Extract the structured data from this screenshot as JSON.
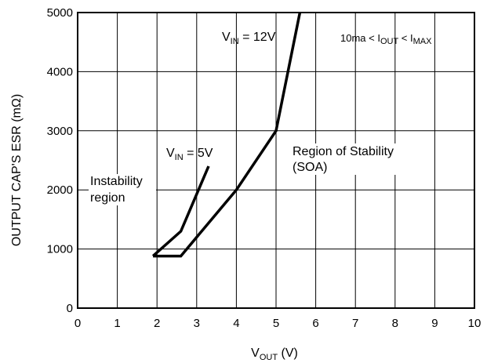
{
  "chart_data": {
    "type": "line",
    "xlabel": {
      "main": "V",
      "sub": "OUT",
      "unit": " (V)"
    },
    "ylabel": "OUTPUT CAP'S ESR (mΩ)",
    "xlim": [
      0,
      10
    ],
    "ylim": [
      0,
      5000
    ],
    "x_ticks": [
      "0",
      "1",
      "2",
      "3",
      "4",
      "5",
      "6",
      "7",
      "8",
      "9",
      "10"
    ],
    "y_ticks": [
      "0",
      "1000",
      "2000",
      "3000",
      "4000",
      "5000"
    ],
    "grid": true,
    "series": [
      {
        "label": {
          "main": "V",
          "sub": "IN",
          "rest": " = 12V"
        },
        "x": [
          1.9,
          2.6,
          4.0,
          5.0,
          5.6
        ],
        "y": [
          880,
          880,
          2000,
          3000,
          5000
        ]
      },
      {
        "label": {
          "main": "V",
          "sub": "IN",
          "rest": " = 5V"
        },
        "x": [
          1.9,
          2.6,
          3.3
        ],
        "y": [
          880,
          1300,
          2400
        ]
      }
    ],
    "annotations": {
      "condition": {
        "a": "10ma < I",
        "b": "OUT",
        "c": " < I",
        "d": "MAX"
      },
      "instability": [
        "Instability",
        "region"
      ],
      "stability": [
        "Region of Stability",
        "(SOA)"
      ]
    }
  }
}
